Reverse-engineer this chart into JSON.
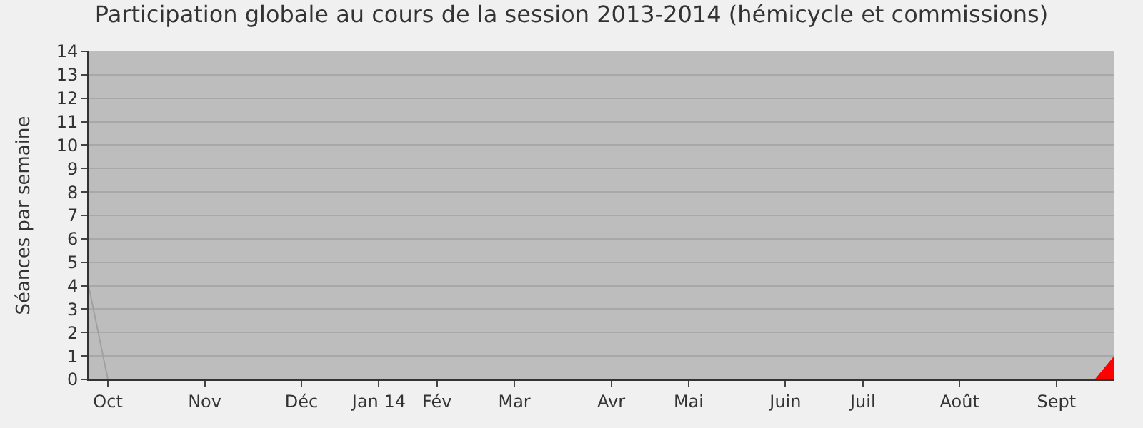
{
  "chart_data": {
    "type": "line",
    "title": "Participation globale au cours de la session 2013-2014 (hémicycle et commissions)",
    "ylabel": "Séances par semaine",
    "categories": [
      null,
      "Oct",
      null,
      null,
      null,
      null,
      "Nov",
      null,
      null,
      null,
      null,
      "Déc",
      null,
      null,
      null,
      "Jan 14",
      null,
      null,
      "Fév",
      null,
      null,
      null,
      "Mar",
      null,
      null,
      null,
      null,
      "Avr",
      null,
      null,
      null,
      "Mai",
      null,
      null,
      null,
      null,
      "Juin",
      null,
      null,
      null,
      "Juil",
      null,
      null,
      null,
      null,
      "Août",
      null,
      null,
      null,
      null,
      "Sept",
      null,
      null,
      null
    ],
    "series": [
      {
        "color": "#a0a0a0",
        "values": [
          4,
          0,
          0,
          0,
          0,
          0,
          0,
          0,
          0,
          0,
          0,
          0,
          0,
          0,
          0,
          0,
          0,
          0,
          0,
          0,
          0,
          0,
          0,
          0,
          0,
          0,
          0,
          0,
          0,
          0,
          0,
          0,
          0,
          0,
          0,
          0,
          0,
          0,
          0,
          0,
          0,
          0,
          0,
          0,
          0,
          0,
          0,
          0,
          0,
          0,
          0,
          0,
          0,
          0
        ]
      },
      {
        "type": "area",
        "color": "#ff0000",
        "values": [
          0,
          0,
          0,
          0,
          0,
          0,
          0,
          0,
          0,
          0,
          0,
          0,
          0,
          0,
          0,
          0,
          0,
          0,
          0,
          0,
          0,
          0,
          0,
          0,
          0,
          0,
          0,
          0,
          0,
          0,
          0,
          0,
          0,
          0,
          0,
          0,
          0,
          0,
          0,
          0,
          0,
          0,
          0,
          0,
          0,
          0,
          0,
          0,
          0,
          0,
          0,
          0,
          0,
          1
        ]
      }
    ],
    "ylim": [
      0,
      14
    ],
    "yticks": [
      0,
      1,
      2,
      3,
      4,
      5,
      6,
      7,
      8,
      9,
      10,
      11,
      12,
      13,
      14
    ],
    "grid": "y",
    "marker": "none"
  }
}
